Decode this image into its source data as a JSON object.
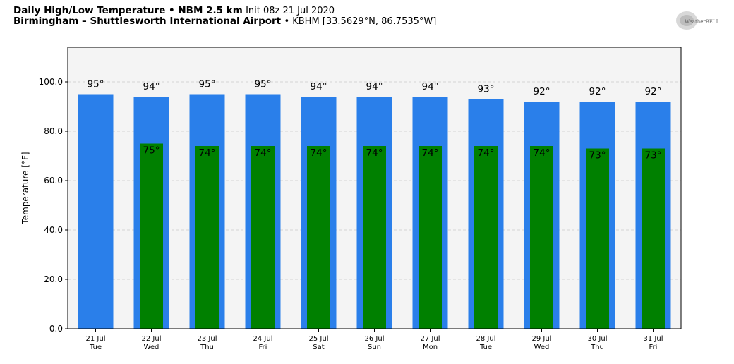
{
  "header": {
    "title_bold": "Daily High/Low Temperature • NBM 2.5 km",
    "title_init": "Init 08z 21 Jul 2020",
    "station_bold": "Birmingham – Shuttlesworth International Airport",
    "station_info": "• KBHM [33.5629°N, 86.7535°W]"
  },
  "logo": {
    "text": "WeatherBELL"
  },
  "colors": {
    "high": "#2a7fea",
    "low": "#008000",
    "plot_bg": "#f4f4f4"
  },
  "chart_data": {
    "type": "bar",
    "title": "Daily High/Low Temperature • NBM 2.5 km",
    "ylabel": "Temperature [°F]",
    "ylim": [
      0,
      114
    ],
    "yticks": [
      "0.0",
      "20.0",
      "40.0",
      "60.0",
      "80.0",
      "100.0"
    ],
    "grid": true,
    "categories": [
      {
        "date": "21 Jul",
        "day": "Tue"
      },
      {
        "date": "22 Jul",
        "day": "Wed"
      },
      {
        "date": "23 Jul",
        "day": "Thu"
      },
      {
        "date": "24 Jul",
        "day": "Fri"
      },
      {
        "date": "25 Jul",
        "day": "Sat"
      },
      {
        "date": "26 Jul",
        "day": "Sun"
      },
      {
        "date": "27 Jul",
        "day": "Mon"
      },
      {
        "date": "28 Jul",
        "day": "Tue"
      },
      {
        "date": "29 Jul",
        "day": "Wed"
      },
      {
        "date": "30 Jul",
        "day": "Thu"
      },
      {
        "date": "31 Jul",
        "day": "Fri"
      }
    ],
    "series": [
      {
        "name": "High",
        "values": [
          95,
          94,
          95,
          95,
          94,
          94,
          94,
          93,
          92,
          92,
          92
        ],
        "labels": [
          "95°",
          "94°",
          "95°",
          "95°",
          "94°",
          "94°",
          "94°",
          "93°",
          "92°",
          "92°",
          "92°"
        ]
      },
      {
        "name": "Low",
        "values": [
          null,
          75,
          74,
          74,
          74,
          74,
          74,
          74,
          74,
          73,
          73
        ],
        "labels": [
          "",
          "75°",
          "74°",
          "74°",
          "74°",
          "74°",
          "74°",
          "74°",
          "74°",
          "73°",
          "73°"
        ]
      }
    ]
  }
}
